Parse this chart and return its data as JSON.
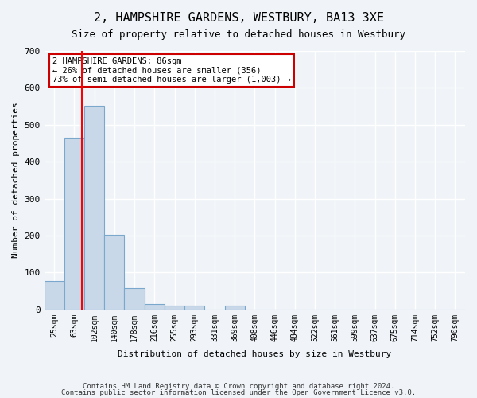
{
  "title": "2, HAMPSHIRE GARDENS, WESTBURY, BA13 3XE",
  "subtitle": "Size of property relative to detached houses in Westbury",
  "xlabel": "Distribution of detached houses by size in Westbury",
  "ylabel": "Number of detached properties",
  "bar_values": [
    78,
    465,
    552,
    203,
    57,
    15,
    10,
    10,
    0,
    10,
    0,
    0,
    0,
    0,
    0,
    0,
    0,
    0,
    0,
    0,
    0
  ],
  "x_labels": [
    "25sqm",
    "63sqm",
    "102sqm",
    "140sqm",
    "178sqm",
    "216sqm",
    "255sqm",
    "293sqm",
    "331sqm",
    "369sqm",
    "408sqm",
    "446sqm",
    "484sqm",
    "522sqm",
    "561sqm",
    "599sqm",
    "637sqm",
    "675sqm",
    "714sqm",
    "752sqm",
    "790sqm"
  ],
  "bar_color": "#c8d8e8",
  "bar_edge_color": "#7aa8cc",
  "red_line_x": 1.38,
  "annotation_text": "2 HAMPSHIRE GARDENS: 86sqm\n← 26% of detached houses are smaller (356)\n73% of semi-detached houses are larger (1,003) →",
  "annotation_box_color": "#ffffff",
  "annotation_box_edge": "#cc0000",
  "ylim": [
    0,
    700
  ],
  "yticks": [
    0,
    100,
    200,
    300,
    400,
    500,
    600,
    700
  ],
  "footer_line1": "Contains HM Land Registry data © Crown copyright and database right 2024.",
  "footer_line2": "Contains public sector information licensed under the Open Government Licence v3.0.",
  "bg_color": "#f0f4f8",
  "plot_bg_color": "#f0f4f8",
  "grid_color": "#ffffff"
}
